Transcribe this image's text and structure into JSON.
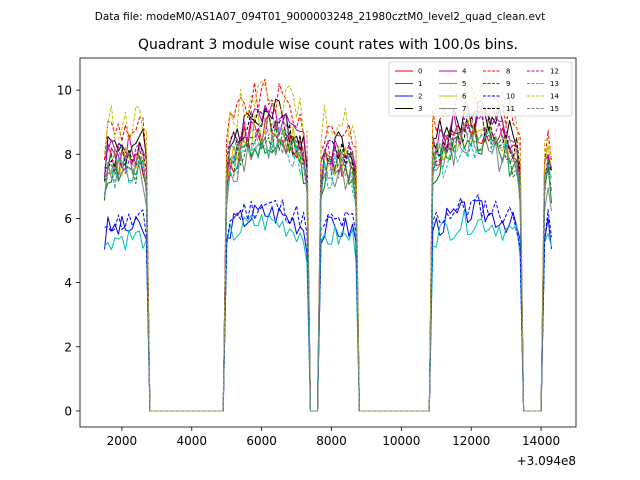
{
  "header": {
    "data_file": "Data file: modeM0/AS1A07_094T01_9000003248_21980cztM0_level2_quad_clean.evt"
  },
  "chart_data": {
    "type": "line",
    "title": "Quadrant 3 module wise count rates with 100.0s bins.",
    "xlabel": "",
    "ylabel": "",
    "x_offset_label": "+3.094e8",
    "xlim": [
      800,
      15000
    ],
    "ylim": [
      -0.5,
      11
    ],
    "x_ticks": [
      2000,
      4000,
      6000,
      8000,
      10000,
      12000,
      14000
    ],
    "x_tick_labels": [
      "2000",
      "4000",
      "6000",
      "8000",
      "10000",
      "12000",
      "14000"
    ],
    "y_ticks": [
      0,
      2,
      4,
      6,
      8,
      10
    ],
    "y_tick_labels": [
      "0",
      "2",
      "4",
      "6",
      "8",
      "10"
    ],
    "grid": false,
    "legend_position": "top-right",
    "segments": [
      {
        "start": 1500,
        "end": 2700
      },
      {
        "start": 5000,
        "end": 7300
      },
      {
        "start": 7700,
        "end": 8700
      },
      {
        "start": 10850,
        "end": 13400
      },
      {
        "start": 14100,
        "end": 14300
      }
    ],
    "series": [
      {
        "name": "0",
        "color": "#ff0000",
        "dash": "solid",
        "level": 7.7
      },
      {
        "name": "1",
        "color": "#008000",
        "dash": "solid",
        "level": 7.5
      },
      {
        "name": "2",
        "color": "#0000ff",
        "dash": "solid",
        "level": 5.7
      },
      {
        "name": "3",
        "color": "#000000",
        "dash": "solid",
        "level": 8.3
      },
      {
        "name": "4",
        "color": "#bf00bf",
        "dash": "solid",
        "level": 8.1
      },
      {
        "name": "5",
        "color": "#00bfbf",
        "dash": "solid",
        "level": 5.4
      },
      {
        "name": "6",
        "color": "#bfbf00",
        "dash": "solid",
        "level": 7.8
      },
      {
        "name": "7",
        "color": "#808080",
        "dash": "solid",
        "level": 7.3
      },
      {
        "name": "8",
        "color": "#ff0000",
        "dash": "dashed",
        "level": 8.8
      },
      {
        "name": "9",
        "color": "#008000",
        "dash": "dashed",
        "level": 7.6
      },
      {
        "name": "10",
        "color": "#0000ff",
        "dash": "dashed",
        "level": 5.9
      },
      {
        "name": "11",
        "color": "#000000",
        "dash": "dashed",
        "level": 8.0
      },
      {
        "name": "12",
        "color": "#bf00bf",
        "dash": "dashed",
        "level": 7.9
      },
      {
        "name": "13",
        "color": "#00bfbf",
        "dash": "dashed",
        "level": 7.4
      },
      {
        "name": "14",
        "color": "#bfbf00",
        "dash": "dashed",
        "level": 9.0
      },
      {
        "name": "15",
        "color": "#808080",
        "dash": "dashed",
        "level": 7.7
      }
    ]
  }
}
